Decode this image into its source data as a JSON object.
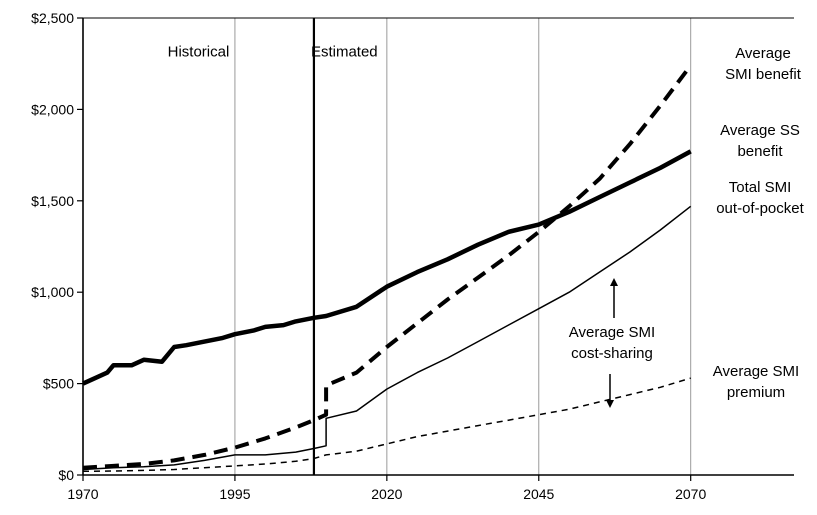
{
  "chart_data": {
    "type": "line",
    "title": "",
    "xlabel": "",
    "ylabel": "",
    "xlim": [
      1970,
      2087
    ],
    "ylim": [
      0,
      2500
    ],
    "x_ticks": [
      1970,
      1995,
      2020,
      2045,
      2070
    ],
    "x_tick_labels": [
      "1970",
      "1995",
      "2020",
      "2045",
      "2070"
    ],
    "y_ticks": [
      0,
      500,
      1000,
      1500,
      2000,
      2500
    ],
    "y_tick_labels": [
      "$0",
      "$500",
      "$1,000",
      "$1,500",
      "$2,000",
      "$2,500"
    ],
    "grid": "vertical",
    "divider_x": 2008,
    "region_labels": [
      {
        "text": "Historical",
        "x": 1989,
        "y": 2290
      },
      {
        "text": "Estimated",
        "x": 2013,
        "y": 2290
      }
    ],
    "series": [
      {
        "label_lines": [
          "Average SS",
          "benefit"
        ],
        "style": "thick",
        "x": [
          1970,
          1972,
          1974,
          1975,
          1978,
          1980,
          1983,
          1985,
          1987,
          1990,
          1993,
          1995,
          1998,
          2000,
          2003,
          2005,
          2008,
          2010,
          2015,
          2020,
          2025,
          2030,
          2035,
          2040,
          2045,
          2050,
          2055,
          2060,
          2065,
          2070
        ],
        "values": [
          500,
          530,
          560,
          600,
          600,
          630,
          620,
          700,
          710,
          730,
          750,
          770,
          790,
          810,
          820,
          840,
          860,
          870,
          920,
          1030,
          1110,
          1180,
          1260,
          1330,
          1370,
          1440,
          1520,
          1600,
          1680,
          1770
        ]
      },
      {
        "label_lines": [
          "Average",
          "SMI benefit"
        ],
        "style": "thick-dashed",
        "x": [
          1970,
          1975,
          1980,
          1985,
          1990,
          1995,
          2000,
          2005,
          2008,
          2010,
          2010,
          2015,
          2020,
          2025,
          2030,
          2035,
          2040,
          2045,
          2050,
          2055,
          2060,
          2065,
          2070
        ],
        "values": [
          40,
          50,
          60,
          80,
          110,
          150,
          200,
          260,
          300,
          330,
          490,
          560,
          700,
          830,
          960,
          1080,
          1200,
          1330,
          1470,
          1620,
          1810,
          2020,
          2240
        ]
      },
      {
        "label_lines": [
          "Total SMI",
          "out-of-pocket"
        ],
        "style": "thin",
        "x": [
          1970,
          1975,
          1980,
          1985,
          1990,
          1995,
          2000,
          2005,
          2008,
          2010,
          2010,
          2015,
          2020,
          2025,
          2030,
          2035,
          2040,
          2045,
          2050,
          2055,
          2060,
          2065,
          2070
        ],
        "values": [
          30,
          40,
          45,
          55,
          80,
          110,
          110,
          125,
          145,
          160,
          310,
          350,
          470,
          560,
          640,
          730,
          820,
          910,
          1000,
          1110,
          1220,
          1340,
          1470
        ]
      },
      {
        "label_lines": [
          "Average SMI",
          "premium"
        ],
        "style": "thin-dashed",
        "x": [
          1970,
          1975,
          1980,
          1985,
          1990,
          1995,
          2000,
          2005,
          2008,
          2010,
          2015,
          2020,
          2025,
          2030,
          2035,
          2040,
          2045,
          2050,
          2055,
          2060,
          2065,
          2070
        ],
        "values": [
          20,
          22,
          25,
          30,
          40,
          50,
          60,
          75,
          90,
          110,
          130,
          170,
          210,
          240,
          270,
          300,
          330,
          360,
          400,
          440,
          480,
          530
        ]
      }
    ],
    "annotations": [
      {
        "text_lines": [
          "Average SMI",
          "cost-sharing"
        ]
      }
    ]
  }
}
